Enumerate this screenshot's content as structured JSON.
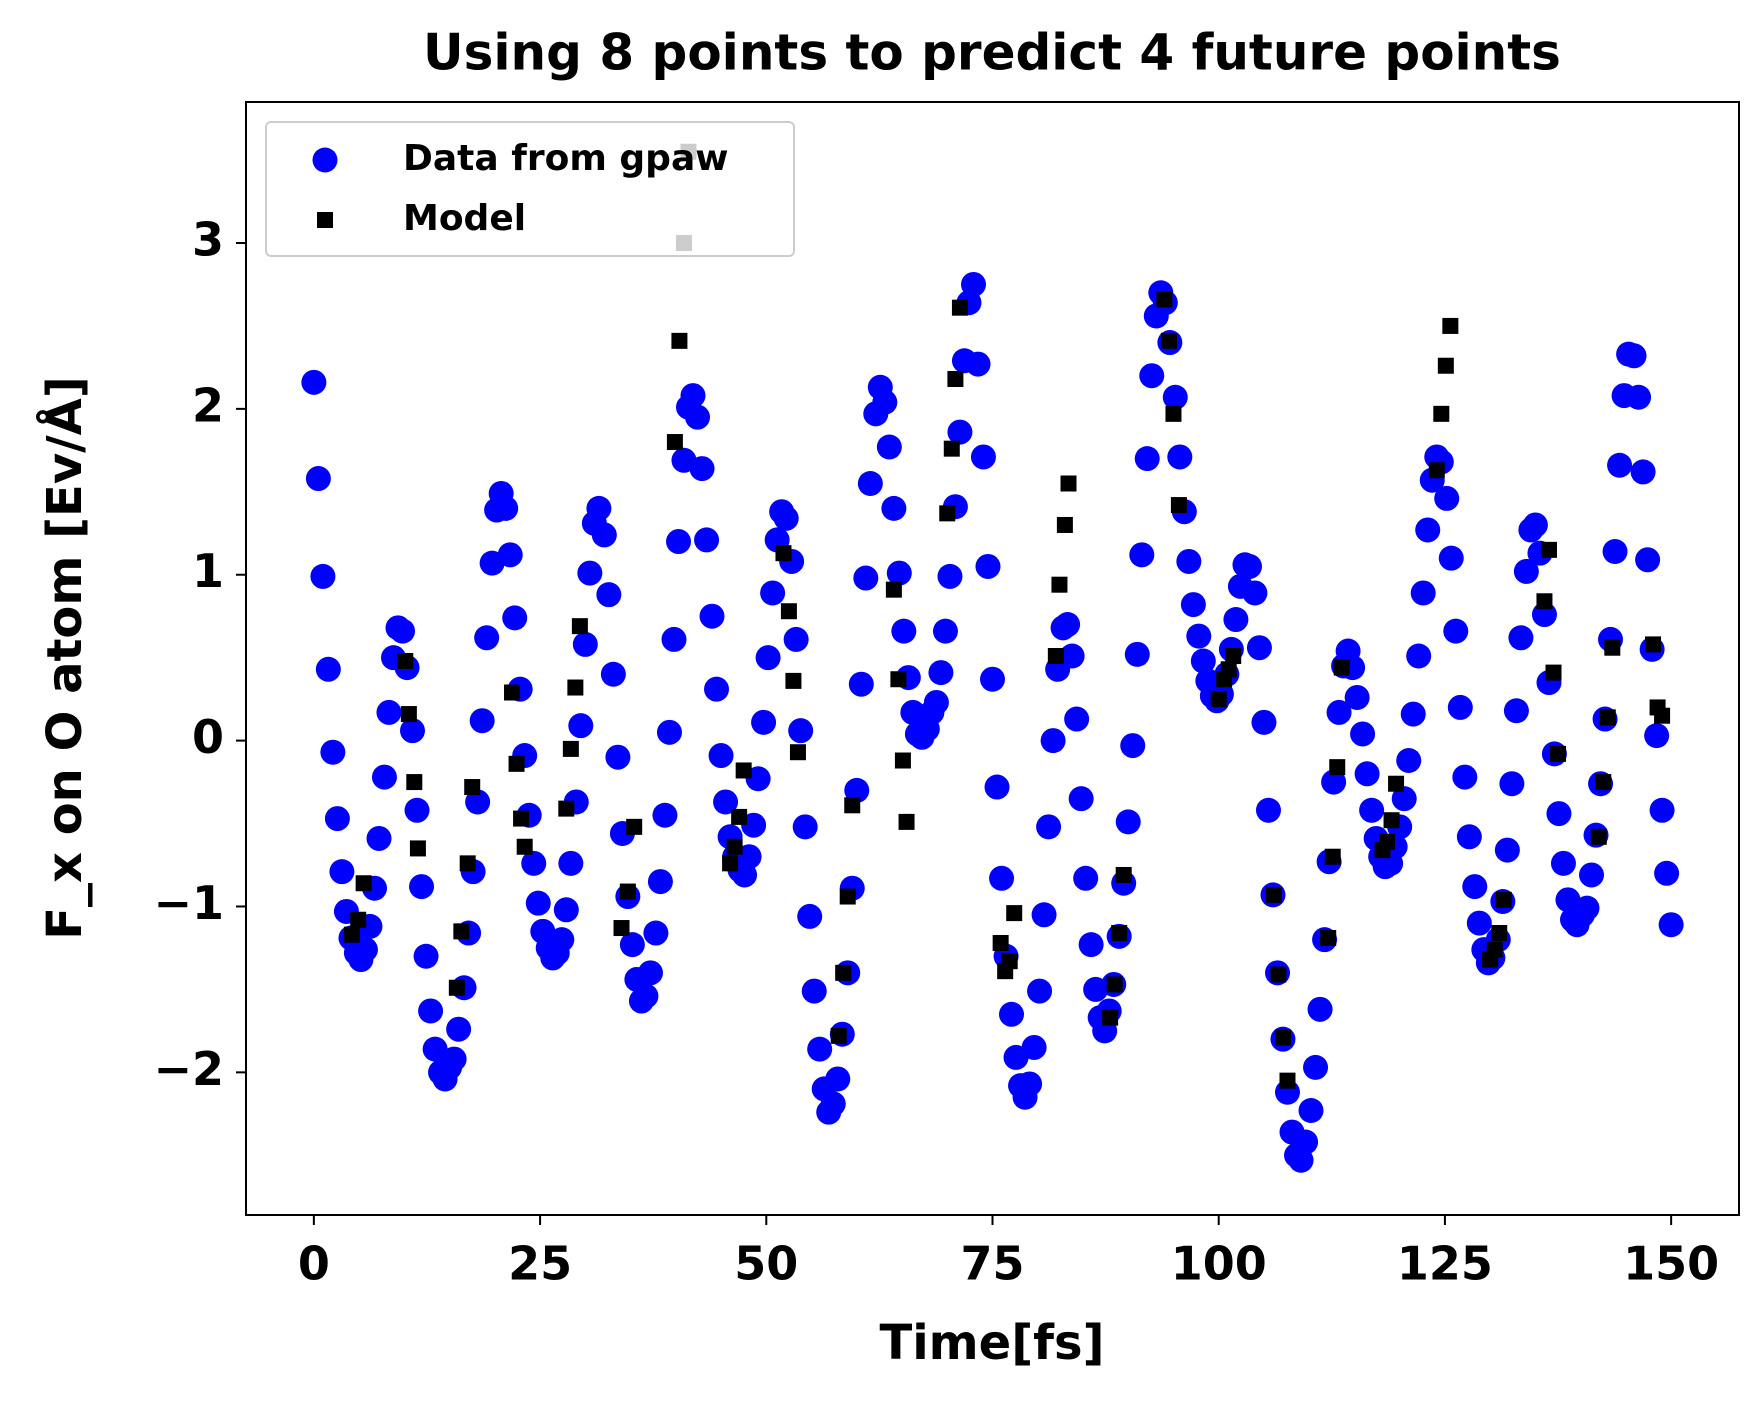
{
  "chart_data": {
    "type": "scatter",
    "title": "Using 8 points to predict 4 future points",
    "xlabel": "Time[fs]",
    "ylabel": "F_x on O atom [Ev/Å]",
    "xlim": [
      -7.5,
      157.5
    ],
    "ylim": [
      -2.86,
      3.85
    ],
    "xticks": [
      0,
      25,
      50,
      75,
      100,
      125,
      150
    ],
    "yticks": [
      {
        "value": -2,
        "label": "−2"
      },
      {
        "value": -1,
        "label": "−1"
      },
      0,
      1,
      2,
      3
    ],
    "legend": "upper left",
    "series": [
      {
        "name": "Data from gpaw",
        "color": "#0000ff",
        "marker": "circle",
        "x": [
          0.0,
          0.5,
          1.0,
          1.6,
          2.1,
          2.6,
          3.1,
          3.6,
          4.1,
          4.7,
          5.2,
          5.7,
          6.2,
          6.7,
          7.2,
          7.8,
          8.3,
          8.8,
          9.3,
          9.8,
          10.3,
          10.9,
          11.4,
          11.9,
          12.4,
          12.9,
          13.4,
          14.0,
          14.5,
          15.0,
          15.5,
          16.0,
          16.6,
          17.1,
          17.6,
          18.1,
          18.6,
          19.1,
          19.7,
          20.2,
          20.7,
          21.2,
          21.7,
          22.2,
          22.8,
          23.3,
          23.8,
          24.3,
          24.8,
          25.3,
          25.9,
          26.4,
          26.9,
          27.4,
          27.9,
          28.4,
          29.0,
          29.5,
          30.0,
          30.5,
          31.0,
          31.5,
          32.1,
          32.6,
          33.1,
          33.6,
          34.1,
          34.7,
          35.2,
          35.7,
          36.2,
          36.7,
          37.2,
          37.8,
          38.3,
          38.8,
          39.3,
          39.8,
          40.3,
          40.9,
          41.4,
          41.9,
          42.4,
          42.9,
          43.4,
          44.0,
          44.5,
          45.0,
          45.5,
          46.0,
          46.5,
          47.1,
          47.6,
          48.1,
          48.6,
          49.1,
          49.7,
          50.2,
          50.7,
          51.2,
          51.7,
          52.2,
          52.8,
          53.3,
          53.8,
          54.3,
          54.8,
          55.3,
          55.9,
          56.4,
          56.9,
          57.4,
          57.9,
          58.4,
          59.0,
          59.5,
          60.0,
          60.5,
          61.0,
          61.5,
          62.1,
          62.6,
          63.1,
          63.6,
          64.1,
          64.7,
          65.2,
          65.7,
          66.2,
          66.7,
          67.2,
          67.8,
          68.3,
          68.8,
          69.3,
          69.8,
          70.3,
          70.9,
          71.4,
          71.9,
          72.4,
          72.9,
          73.4,
          74.0,
          74.5,
          75.0,
          75.5,
          76.0,
          76.5,
          77.1,
          77.6,
          78.1,
          78.6,
          79.1,
          79.6,
          80.2,
          80.7,
          81.2,
          81.7,
          82.2,
          82.8,
          83.3,
          83.8,
          84.3,
          84.8,
          85.3,
          85.9,
          86.4,
          86.9,
          87.4,
          87.9,
          88.4,
          89.0,
          89.5,
          90.0,
          90.5,
          91.0,
          91.5,
          92.1,
          92.6,
          93.1,
          93.6,
          94.1,
          94.6,
          95.2,
          95.7,
          96.2,
          96.7,
          97.2,
          97.8,
          98.3,
          98.8,
          99.3,
          99.8,
          100.3,
          100.9,
          101.4,
          101.9,
          102.4,
          102.9,
          103.4,
          104.0,
          104.5,
          105.0,
          105.5,
          106.0,
          106.5,
          107.1,
          107.6,
          108.1,
          108.6,
          109.1,
          109.6,
          110.2,
          110.7,
          111.2,
          111.7,
          112.2,
          112.7,
          113.3,
          113.8,
          114.3,
          114.8,
          115.3,
          115.9,
          116.4,
          116.9,
          117.4,
          117.9,
          118.4,
          119.0,
          119.5,
          120.0,
          120.5,
          121.0,
          121.5,
          122.1,
          122.6,
          123.1,
          123.6,
          124.1,
          124.6,
          125.2,
          125.7,
          126.2,
          126.7,
          127.2,
          127.7,
          128.3,
          128.8,
          129.3,
          129.8,
          130.3,
          130.9,
          131.4,
          131.9,
          132.4,
          132.9,
          133.4,
          134.0,
          134.5,
          135.0,
          135.5,
          136.0,
          136.5,
          137.1,
          137.6,
          138.1,
          138.6,
          139.1,
          139.6,
          140.2,
          140.7,
          141.2,
          141.7,
          142.2,
          142.7,
          143.3,
          143.8,
          144.3,
          144.8,
          145.3,
          145.9,
          146.4,
          146.9,
          147.4,
          147.9,
          148.4,
          149.0,
          149.5,
          150.0
        ],
        "values": [
          2.16,
          1.58,
          0.99,
          0.43,
          -0.07,
          -0.47,
          -0.79,
          -1.03,
          -1.19,
          -1.28,
          -1.32,
          -1.26,
          -1.12,
          -0.89,
          -0.59,
          -0.22,
          0.17,
          0.5,
          0.68,
          0.66,
          0.44,
          0.06,
          -0.42,
          -0.88,
          -1.3,
          -1.63,
          -1.86,
          -2.0,
          -2.04,
          -1.97,
          -1.92,
          -1.74,
          -1.49,
          -1.16,
          -0.79,
          -0.37,
          0.12,
          0.62,
          1.07,
          1.39,
          1.49,
          1.4,
          1.12,
          0.74,
          0.31,
          -0.09,
          -0.45,
          -0.74,
          -0.98,
          -1.15,
          -1.25,
          -1.31,
          -1.28,
          -1.2,
          -1.02,
          -0.74,
          -0.37,
          0.09,
          0.58,
          1.01,
          1.31,
          1.4,
          1.24,
          0.88,
          0.4,
          -0.1,
          -0.56,
          -0.94,
          -1.23,
          -1.44,
          -1.57,
          -1.54,
          -1.4,
          -1.16,
          -0.85,
          -0.45,
          0.05,
          0.61,
          1.2,
          1.69,
          2.01,
          2.08,
          1.95,
          1.64,
          1.21,
          0.75,
          0.31,
          -0.09,
          -0.37,
          -0.58,
          -0.7,
          -0.78,
          -0.81,
          -0.7,
          -0.51,
          -0.23,
          0.11,
          0.5,
          0.89,
          1.21,
          1.38,
          1.34,
          1.08,
          0.61,
          0.06,
          -0.52,
          -1.06,
          -1.51,
          -1.86,
          -2.1,
          -2.24,
          -2.19,
          -2.04,
          -1.77,
          -1.4,
          -0.89,
          -0.3,
          0.34,
          0.98,
          1.55,
          1.97,
          2.13,
          2.04,
          1.77,
          1.4,
          1.01,
          0.66,
          0.38,
          0.17,
          0.04,
          0.02,
          0.07,
          0.17,
          0.23,
          0.41,
          0.66,
          0.99,
          1.41,
          1.86,
          2.29,
          2.64,
          2.75,
          2.27,
          1.71,
          1.05,
          0.37,
          -0.28,
          -0.83,
          -1.3,
          -1.65,
          -1.91,
          -2.08,
          -2.15,
          -2.07,
          -1.85,
          -1.51,
          -1.05,
          -0.52,
          0.0,
          0.43,
          0.68,
          0.7,
          0.51,
          0.13,
          -0.35,
          -0.83,
          -1.23,
          -1.5,
          -1.67,
          -1.75,
          -1.63,
          -1.47,
          -1.18,
          -0.86,
          -0.49,
          -0.03,
          0.52,
          1.12,
          1.7,
          2.2,
          2.56,
          2.7,
          2.64,
          2.4,
          2.07,
          1.71,
          1.38,
          1.08,
          0.82,
          0.63,
          0.48,
          0.36,
          0.27,
          0.24,
          0.28,
          0.4,
          0.55,
          0.73,
          0.93,
          1.06,
          1.05,
          0.89,
          0.56,
          0.11,
          -0.42,
          -0.93,
          -1.4,
          -1.8,
          -2.12,
          -2.36,
          -2.5,
          -2.53,
          -2.42,
          -2.23,
          -1.97,
          -1.62,
          -1.2,
          -0.73,
          -0.25,
          0.17,
          0.45,
          0.54,
          0.44,
          0.26,
          0.04,
          -0.2,
          -0.42,
          -0.59,
          -0.7,
          -0.76,
          -0.74,
          -0.64,
          -0.52,
          -0.35,
          -0.12,
          0.16,
          0.51,
          0.89,
          1.27,
          1.57,
          1.71,
          1.68,
          1.46,
          1.1,
          0.66,
          0.2,
          -0.22,
          -0.58,
          -0.88,
          -1.1,
          -1.26,
          -1.34,
          -1.31,
          -1.2,
          -0.97,
          -0.66,
          -0.26,
          0.18,
          0.62,
          1.02,
          1.27,
          1.3,
          1.13,
          0.76,
          0.35,
          -0.08,
          -0.44,
          -0.74,
          -0.96,
          -1.08,
          -1.11,
          -1.05,
          -1.01,
          -0.81,
          -0.57,
          -0.26,
          0.13,
          0.61,
          1.14,
          1.66,
          2.08,
          2.33,
          2.32,
          2.07,
          1.62,
          1.09,
          0.55,
          0.03,
          -0.42,
          -0.8,
          -1.11
        ]
      },
      {
        "name": "Model",
        "color": "#000000",
        "marker": "square",
        "x": [
          4.2,
          4.9,
          5.5,
          10.1,
          10.5,
          11.1,
          11.5,
          15.8,
          16.3,
          17.0,
          17.5,
          21.9,
          22.4,
          22.9,
          23.3,
          27.9,
          28.4,
          28.9,
          29.4,
          34.0,
          34.7,
          35.4,
          39.9,
          40.4,
          40.9,
          41.4,
          46.0,
          46.5,
          47.0,
          47.5,
          51.9,
          52.5,
          53.0,
          53.5,
          58.0,
          58.5,
          59.0,
          59.5,
          64.1,
          64.6,
          65.1,
          65.5,
          70.0,
          70.5,
          70.9,
          71.4,
          75.9,
          76.4,
          76.9,
          77.4,
          82.0,
          82.4,
          83.0,
          83.4,
          88.0,
          88.5,
          89.0,
          89.5,
          94.0,
          94.5,
          95.0,
          95.6,
          100.0,
          100.6,
          101.1,
          101.6,
          106.1,
          106.6,
          107.1,
          107.6,
          112.1,
          112.6,
          113.1,
          113.6,
          118.1,
          118.6,
          119.1,
          119.6,
          124.1,
          124.6,
          125.1,
          125.6,
          130.0,
          130.5,
          131.0,
          131.5,
          136.0,
          136.5,
          137.0,
          137.5,
          142.0,
          142.5,
          143.0,
          143.5,
          148.0,
          148.5,
          149.0
        ],
        "values": [
          -1.17,
          -1.08,
          -0.86,
          0.48,
          0.16,
          -0.25,
          -0.65,
          -1.49,
          -1.15,
          -0.74,
          -0.28,
          0.29,
          -0.14,
          -0.47,
          -0.64,
          -0.41,
          -0.05,
          0.32,
          0.69,
          -1.13,
          -0.91,
          -0.52,
          1.8,
          2.41,
          3.0,
          3.55,
          -0.74,
          -0.64,
          -0.46,
          -0.18,
          1.13,
          0.78,
          0.36,
          -0.07,
          -1.78,
          -1.4,
          -0.94,
          -0.39,
          0.91,
          0.37,
          -0.12,
          -0.49,
          1.37,
          1.76,
          2.18,
          2.61,
          -1.22,
          -1.39,
          -1.33,
          -1.04,
          0.51,
          0.94,
          1.3,
          1.55,
          -1.67,
          -1.47,
          -1.16,
          -0.81,
          2.66,
          2.41,
          1.97,
          1.42,
          0.25,
          0.37,
          0.43,
          0.51,
          -0.93,
          -1.41,
          -1.79,
          -2.05,
          -1.19,
          -0.7,
          -0.16,
          0.44,
          -0.66,
          -0.61,
          -0.48,
          -0.26,
          1.63,
          1.97,
          2.26,
          2.5,
          -1.32,
          -1.26,
          -1.16,
          -0.96,
          0.84,
          1.15,
          0.41,
          -0.08,
          -0.58,
          -0.25,
          0.14,
          0.56,
          0.58,
          0.2,
          0.15
        ]
      }
    ]
  }
}
